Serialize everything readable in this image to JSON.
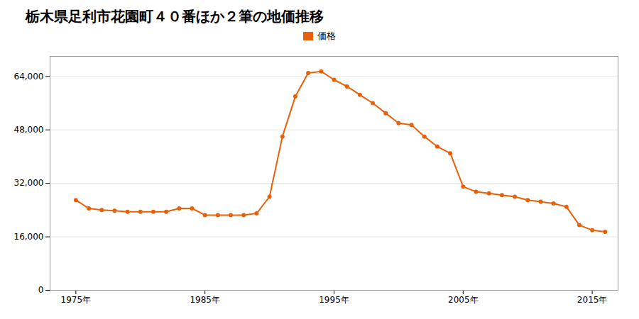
{
  "chart_data": {
    "type": "line",
    "title": "栃木県足利市花園町４０番ほか２筆の地価推移",
    "x": [
      1975,
      1976,
      1977,
      1978,
      1979,
      1980,
      1981,
      1982,
      1983,
      1984,
      1985,
      1986,
      1987,
      1988,
      1989,
      1990,
      1991,
      1992,
      1993,
      1994,
      1995,
      1996,
      1997,
      1998,
      1999,
      2000,
      2001,
      2002,
      2003,
      2004,
      2005,
      2006,
      2007,
      2008,
      2009,
      2010,
      2011,
      2012,
      2013,
      2014,
      2015,
      2016
    ],
    "series": [
      {
        "name": "価格",
        "color": "#E8610A",
        "marker": "o",
        "values": [
          27000,
          24500,
          24000,
          23800,
          23500,
          23500,
          23500,
          23500,
          24500,
          24500,
          22500,
          22500,
          22500,
          22500,
          23000,
          28000,
          46000,
          58000,
          65000,
          65500,
          63000,
          61000,
          58500,
          56000,
          53000,
          50000,
          49500,
          46000,
          43000,
          41000,
          31000,
          29500,
          29000,
          28500,
          28000,
          27000,
          26500,
          26000,
          25000,
          19500,
          18000,
          17500
        ]
      }
    ],
    "xlim": [
      1973,
      2017
    ],
    "xticks": [
      {
        "value": 1975,
        "label": "1975年"
      },
      {
        "value": 1985,
        "label": "1985年"
      },
      {
        "value": 1995,
        "label": "1995年"
      },
      {
        "value": 2005,
        "label": "2005年"
      },
      {
        "value": 2015,
        "label": "2015年"
      }
    ],
    "ylim": [
      0,
      70000
    ],
    "yticks": [
      0,
      {
        "value": 16000,
        "label": "16,000"
      },
      {
        "value": 32000,
        "label": "32,000"
      },
      {
        "value": 48000,
        "label": "48,000"
      },
      {
        "value": 64000,
        "label": "64,000"
      }
    ],
    "grid": true,
    "legend": "top"
  }
}
